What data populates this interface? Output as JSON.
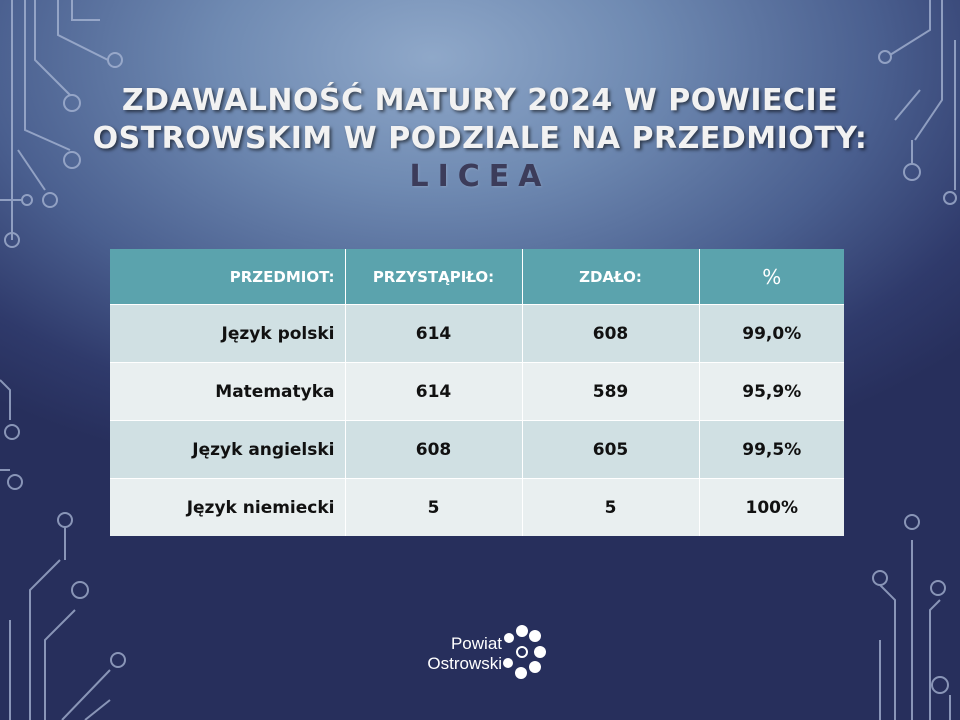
{
  "title": {
    "line1": "ZDAWALNOŚĆ MATURY 2024 W POWIECIE",
    "line2": "OSTROWSKIM W PODZIALE NA PRZEDMIOTY:",
    "subtitle": "LICEA"
  },
  "table": {
    "headers": [
      "PRZEDMIOT:",
      "PRZYSTĄPIŁO:",
      "ZDAŁO:",
      "%"
    ],
    "rows": [
      {
        "subject": "Język polski",
        "took": "614",
        "passed": "608",
        "percent": "99,0%"
      },
      {
        "subject": "Matematyka",
        "took": "614",
        "passed": "589",
        "percent": "95,9%"
      },
      {
        "subject": "Język angielski",
        "took": "608",
        "passed": "605",
        "percent": "99,5%"
      },
      {
        "subject": "Język niemiecki",
        "took": "5",
        "passed": "5",
        "percent": "100%"
      }
    ]
  },
  "logo": {
    "line1": "Powiat",
    "line2": "Ostrowski"
  },
  "colors": {
    "header_bg": "#5ba3ad",
    "row_odd": "#d0e0e3",
    "row_even": "#e9eff0"
  }
}
